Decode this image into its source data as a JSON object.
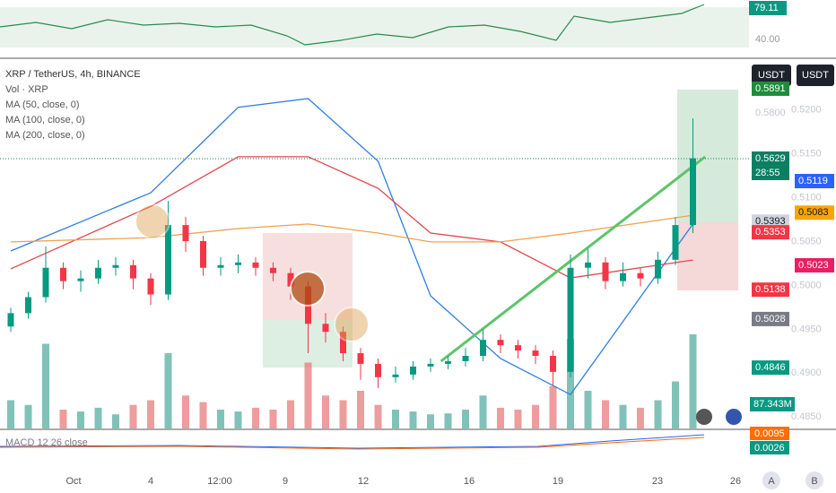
{
  "chart_data": {
    "type": "candlestick",
    "symbol": "XRP / TetherUS, 4h, BINANCE",
    "volume_label": "Vol · XRP",
    "legend": [
      "MA (50, close, 0)",
      "MA (100, close, 0)",
      "MA (200, close, 0)"
    ],
    "currency_buttons": [
      "USDT",
      "USDT"
    ],
    "ylim": [
      0.4618,
      0.6005
    ],
    "y2lim": [
      0.4837,
      0.5259
    ],
    "y2ticks": [
      {
        "value": 0.52,
        "label": "0.5200"
      },
      {
        "value": 0.515,
        "label": "0.5150"
      },
      {
        "value": 0.51,
        "label": "0.5100"
      },
      {
        "value": 0.505,
        "label": "0.5050"
      },
      {
        "value": 0.5,
        "label": "0.5000"
      },
      {
        "value": 0.495,
        "label": "0.4950"
      },
      {
        "value": 0.49,
        "label": "0.4900"
      },
      {
        "value": 0.485,
        "label": "0.4850"
      }
    ],
    "price_labels": [
      {
        "value": 0.5891,
        "label": "0.5891",
        "color": "#1e8c3a"
      },
      {
        "value": 0.58,
        "label": "0.5800",
        "color": "none"
      },
      {
        "value": 0.5629,
        "label": "0.5629",
        "color": "#0b7f62"
      },
      {
        "value": 0.5393,
        "label": "0.5393",
        "color": "#d1d4dc"
      },
      {
        "value": 0.5353,
        "label": "0.5353",
        "color": "#f23645"
      },
      {
        "value": 0.5138,
        "label": "0.5138",
        "color": "#f23645"
      },
      {
        "value": 0.5028,
        "label": "0.5028",
        "color": "#787b86"
      },
      {
        "value": 0.4846,
        "label": "0.4846",
        "color": "#089981"
      }
    ],
    "countdown": "28:55",
    "y2_labels": [
      {
        "value": 0.5119,
        "label": "0.5119",
        "color": "#2962ff"
      },
      {
        "value": 0.5083,
        "label": "0.5083",
        "color": "#f7a600"
      },
      {
        "value": 0.5023,
        "label": "0.5023",
        "color": "#e91e63"
      }
    ],
    "volume_value": "87.343M",
    "rsi_value": "79.11",
    "rsi_tick": "40.00",
    "macd_label": "MACD 12 26 close",
    "macd_values": [
      "0.0095",
      "0.0026"
    ],
    "x_labels": [
      "Oct",
      "4",
      "12:00",
      "9",
      "12",
      "16",
      "19",
      "23",
      "26"
    ],
    "corner_buttons": [
      "A",
      "B"
    ],
    "candles": [
      [
        0.5,
        0.507,
        0.498,
        0.505
      ],
      [
        0.505,
        0.513,
        0.503,
        0.511
      ],
      [
        0.511,
        0.53,
        0.509,
        0.522
      ],
      [
        0.522,
        0.524,
        0.514,
        0.517
      ],
      [
        0.517,
        0.521,
        0.513,
        0.518
      ],
      [
        0.518,
        0.525,
        0.516,
        0.522
      ],
      [
        0.522,
        0.526,
        0.519,
        0.523
      ],
      [
        0.523,
        0.525,
        0.514,
        0.518
      ],
      [
        0.518,
        0.52,
        0.508,
        0.512
      ],
      [
        0.512,
        0.547,
        0.51,
        0.538
      ],
      [
        0.538,
        0.541,
        0.528,
        0.532
      ],
      [
        0.532,
        0.534,
        0.519,
        0.522
      ],
      [
        0.522,
        0.526,
        0.519,
        0.523
      ],
      [
        0.523,
        0.527,
        0.52,
        0.524
      ],
      [
        0.524,
        0.526,
        0.519,
        0.522
      ],
      [
        0.522,
        0.524,
        0.517,
        0.52
      ],
      [
        0.52,
        0.522,
        0.51,
        0.515
      ],
      [
        0.515,
        0.517,
        0.49,
        0.501
      ],
      [
        0.501,
        0.505,
        0.494,
        0.498
      ],
      [
        0.498,
        0.5,
        0.487,
        0.49
      ],
      [
        0.49,
        0.492,
        0.48,
        0.486
      ],
      [
        0.486,
        0.488,
        0.477,
        0.481
      ],
      [
        0.481,
        0.485,
        0.479,
        0.482
      ],
      [
        0.482,
        0.487,
        0.48,
        0.485
      ],
      [
        0.485,
        0.488,
        0.483,
        0.486
      ],
      [
        0.486,
        0.489,
        0.484,
        0.487
      ],
      [
        0.487,
        0.492,
        0.485,
        0.489
      ],
      [
        0.489,
        0.499,
        0.487,
        0.495
      ],
      [
        0.495,
        0.497,
        0.49,
        0.493
      ],
      [
        0.493,
        0.495,
        0.488,
        0.491
      ],
      [
        0.491,
        0.493,
        0.486,
        0.489
      ],
      [
        0.489,
        0.491,
        0.478,
        0.483
      ],
      [
        0.483,
        0.527,
        0.481,
        0.522
      ],
      [
        0.522,
        0.529,
        0.518,
        0.524
      ],
      [
        0.524,
        0.526,
        0.514,
        0.517
      ],
      [
        0.517,
        0.524,
        0.515,
        0.52
      ],
      [
        0.52,
        0.522,
        0.515,
        0.518
      ],
      [
        0.518,
        0.528,
        0.516,
        0.525
      ],
      [
        0.525,
        0.541,
        0.523,
        0.538
      ],
      [
        0.538,
        0.578,
        0.535,
        0.563
      ]
    ],
    "volumes": [
      30,
      25,
      90,
      20,
      18,
      22,
      15,
      25,
      30,
      80,
      35,
      28,
      20,
      18,
      22,
      20,
      30,
      70,
      35,
      30,
      40,
      25,
      20,
      18,
      15,
      16,
      20,
      35,
      22,
      20,
      25,
      45,
      95,
      40,
      30,
      25,
      22,
      30,
      50,
      100
    ],
    "ma_lines": [
      {
        "color": "#2f7fe0",
        "at": [
          0,
          8,
          13,
          17,
          21,
          24,
          28,
          32,
          39
        ],
        "values": [
          0.5283,
          0.5501,
          0.5821,
          0.5854,
          0.5619,
          0.5115,
          0.488,
          0.4745,
          0.5384
        ]
      },
      {
        "color": "#e0474c",
        "at": [
          0,
          8,
          13,
          17,
          21,
          24,
          28,
          32,
          39
        ],
        "values": [
          0.5216,
          0.545,
          0.5636,
          0.5636,
          0.5518,
          0.535,
          0.5317,
          0.5182,
          0.5249
        ]
      },
      {
        "color": "#f0a050",
        "at": [
          0,
          8,
          13,
          17,
          21,
          24,
          28,
          32,
          39
        ],
        "values": [
          0.5317,
          0.5333,
          0.5367,
          0.5384,
          0.535,
          0.5317,
          0.5317,
          0.535,
          0.5417
        ]
      }
    ],
    "trendline": {
      "color": "#5ec46a",
      "at": [
        24.6,
        39.7
      ],
      "values": [
        0.487,
        0.5636
      ]
    }
  }
}
